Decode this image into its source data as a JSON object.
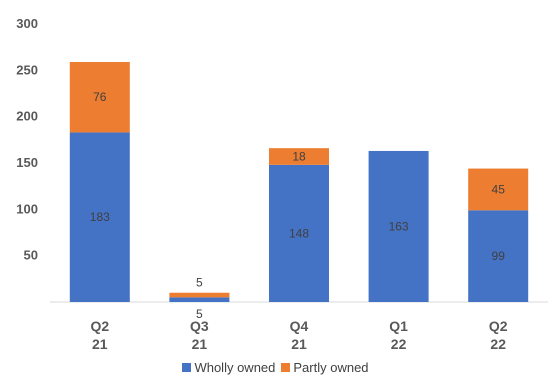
{
  "chart_data": {
    "type": "bar",
    "stacked": true,
    "categories": [
      [
        "Q2",
        "21"
      ],
      [
        "Q3",
        "21"
      ],
      [
        "Q4",
        "21"
      ],
      [
        "Q1",
        "22"
      ],
      [
        "Q2",
        "22"
      ]
    ],
    "series": [
      {
        "name": "Wholly owned",
        "color": "#4472C4",
        "values": [
          183,
          5,
          148,
          163,
          99
        ],
        "labels": [
          "183",
          "5",
          "148",
          "163",
          "99"
        ]
      },
      {
        "name": "Partly owned",
        "color": "#ED7D31",
        "values": [
          76,
          5,
          18,
          0,
          45
        ],
        "labels": [
          "76",
          "5",
          "18",
          "",
          "45"
        ]
      }
    ],
    "ylim": [
      0,
      300
    ],
    "yticks": [
      0,
      50,
      100,
      150,
      200,
      250,
      300
    ],
    "ytick_labels": [
      "",
      "50",
      "100",
      "150",
      "200",
      "250",
      "300"
    ],
    "grid": false,
    "legend_position": "bottom"
  }
}
